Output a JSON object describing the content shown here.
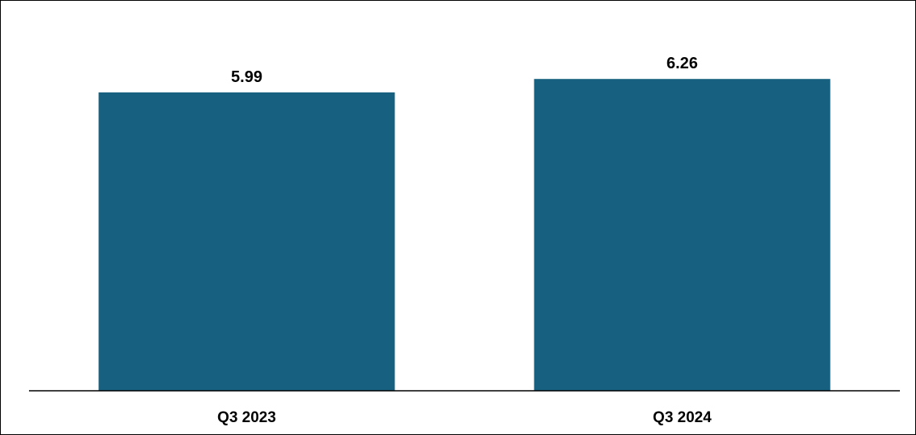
{
  "chart_data": {
    "type": "bar",
    "categories": [
      "Q3 2023",
      "Q3 2024"
    ],
    "values": [
      5.99,
      6.26
    ],
    "value_labels": [
      "5.99",
      "6.26"
    ],
    "title": "",
    "xlabel": "",
    "ylabel": "",
    "ylim": [
      0,
      6.78
    ],
    "grid": false,
    "legend": "none",
    "bar_color": "#17607F",
    "axis_color": "#000000"
  }
}
